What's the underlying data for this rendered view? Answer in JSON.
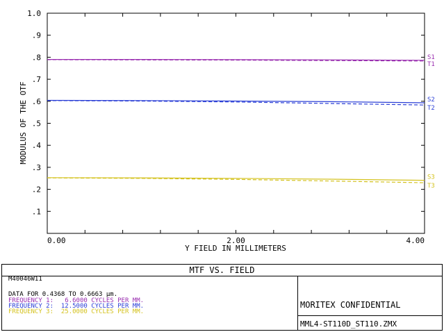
{
  "chart_data": {
    "type": "line",
    "title": "MTF VS. FIELD",
    "xlabel": "Y FIELD IN MILLIMETERS",
    "ylabel": "MODULUS OF THE OTF",
    "xlim": [
      0,
      4.0
    ],
    "ylim": [
      0,
      1.0
    ],
    "x_ticks": [
      "0.00",
      "2.00",
      "4.00"
    ],
    "x_tick_values": [
      0,
      2,
      4
    ],
    "y_ticks": [
      "1.0",
      ".9",
      ".8",
      ".7",
      ".6",
      ".5",
      ".4",
      ".3",
      ".2",
      ".1"
    ],
    "y_tick_values": [
      1.0,
      0.9,
      0.8,
      0.7,
      0.6,
      0.5,
      0.4,
      0.3,
      0.2,
      0.1
    ],
    "grid": false,
    "x": [
      0,
      1,
      2,
      3,
      4
    ],
    "series": [
      {
        "name": "S1",
        "color": "#9a2fb0",
        "dash": false,
        "values": [
          0.79,
          0.79,
          0.789,
          0.788,
          0.786
        ]
      },
      {
        "name": "T1",
        "color": "#9a2fb0",
        "dash": true,
        "values": [
          0.789,
          0.788,
          0.787,
          0.785,
          0.783
        ]
      },
      {
        "name": "S2",
        "color": "#2b3fd6",
        "dash": false,
        "values": [
          0.604,
          0.603,
          0.601,
          0.598,
          0.593
        ]
      },
      {
        "name": "T2",
        "color": "#2b3fd6",
        "dash": true,
        "values": [
          0.603,
          0.601,
          0.597,
          0.59,
          0.583
        ]
      },
      {
        "name": "S3",
        "color": "#d4c21e",
        "dash": false,
        "values": [
          0.253,
          0.252,
          0.25,
          0.246,
          0.241
        ]
      },
      {
        "name": "T3",
        "color": "#d4c21e",
        "dash": true,
        "values": [
          0.252,
          0.25,
          0.245,
          0.238,
          0.23
        ]
      }
    ]
  },
  "footer": {
    "title": "MTF VS. FIELD",
    "id_line": "M40046W11",
    "data_line": "DATA FOR 0.4368 TO 0.6663 µm.",
    "frequencies": [
      {
        "text": "FREQUENCY 1:   6.6000 CYCLES PER MM.",
        "color": "#9a2fb0"
      },
      {
        "text": "FREQUENCY 2:  12.5000 CYCLES PER MM.",
        "color": "#2b3fd6"
      },
      {
        "text": "FREQUENCY 3:  25.0000 CYCLES PER MM.",
        "color": "#d4c21e"
      }
    ],
    "confidential": "MORITEX CONFIDENTIAL",
    "filename": "MML4-ST110D_ST110.ZMX"
  }
}
